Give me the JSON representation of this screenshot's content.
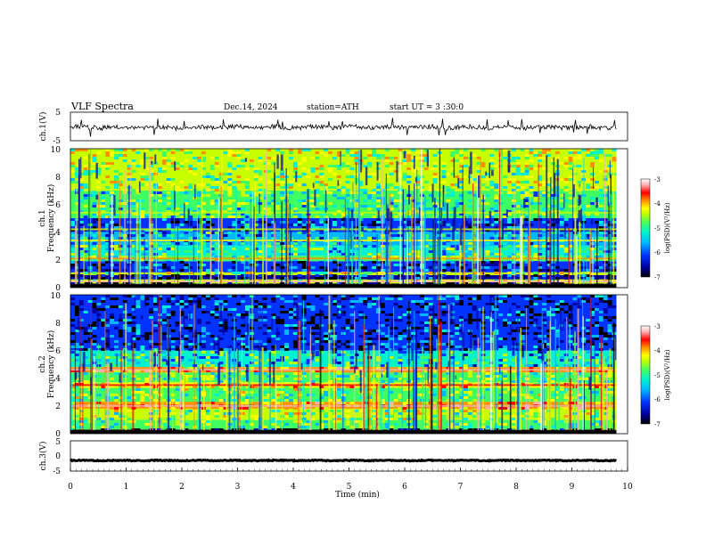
{
  "header": {
    "title": "VLF  Spectra",
    "date": "Dec.14, 2024",
    "station": "station=ATH",
    "start_ut": "start  UT  =   3  :30:0"
  },
  "colors": {
    "cmap": [
      "#000000",
      "#0000a0",
      "#0033ff",
      "#00b8ff",
      "#00f0d0",
      "#40ff60",
      "#c8ff00",
      "#ffff00",
      "#ff9000",
      "#ff0000",
      "#ffb0b0",
      "#ffffff"
    ],
    "trace": "#000000",
    "frame": "#000000"
  },
  "chart_data": [
    {
      "type": "line",
      "name": "ch1-waveform",
      "ylabel": "ch.1(V)",
      "ylim": [
        -5,
        5
      ],
      "yticks": [
        "5",
        "-5"
      ],
      "xlim": [
        0,
        10
      ],
      "x_end": 9.8,
      "mean": -0.3,
      "noise_amplitude": 0.8,
      "spike_amplitude": 2.5
    },
    {
      "type": "heatmap",
      "name": "ch1-spectrogram",
      "ylabel_top": "ch.1",
      "ylabel": "Frequency (kHz)",
      "ylim": [
        0,
        10
      ],
      "yticks": [
        "10",
        "8",
        "6",
        "4",
        "2",
        "0"
      ],
      "xlim": [
        0,
        10
      ],
      "x_end": 9.8,
      "colorbar": {
        "label": "log(PSD)(V²/Hz)",
        "range": [
          -7,
          -3
        ],
        "ticks": [
          "-3",
          "-4",
          "-5",
          "-6",
          "-7"
        ]
      },
      "bands": [
        {
          "f": [
            0.0,
            0.3
          ],
          "level": -7.0
        },
        {
          "f": [
            0.3,
            0.6
          ],
          "level": -5.0
        },
        {
          "f": [
            0.6,
            0.9
          ],
          "level": -6.5
        },
        {
          "f": [
            0.9,
            1.1
          ],
          "level": -4.8
        },
        {
          "f": [
            1.1,
            1.9
          ],
          "level": -6.3
        },
        {
          "f": [
            1.9,
            2.3
          ],
          "level": -5.1
        },
        {
          "f": [
            2.3,
            3.0
          ],
          "level": -5.4
        },
        {
          "f": [
            3.0,
            4.0
          ],
          "level": -5.7
        },
        {
          "f": [
            4.0,
            5.0
          ],
          "level": -6.1
        },
        {
          "f": [
            5.0,
            7.0
          ],
          "level": -5.3
        },
        {
          "f": [
            7.0,
            8.5
          ],
          "level": -5.0
        },
        {
          "f": [
            8.5,
            10.0
          ],
          "level": -4.8
        }
      ],
      "lines": [
        {
          "f": 0.45,
          "level": -3.6
        },
        {
          "f": 2.1,
          "level": -4.3
        },
        {
          "f": 3.4,
          "level": -4.6
        },
        {
          "f": 4.2,
          "level": -4.7
        },
        {
          "f": 5.4,
          "level": -4.8
        }
      ]
    },
    {
      "type": "heatmap",
      "name": "ch2-spectrogram",
      "ylabel_top": "ch.2",
      "ylabel": "Frequency (kHz)",
      "ylim": [
        0,
        10
      ],
      "yticks": [
        "10",
        "8",
        "6",
        "4",
        "2",
        "0"
      ],
      "xlim": [
        0,
        10
      ],
      "x_end": 9.8,
      "colorbar": {
        "label": "log(PSD)(V²/Hz)",
        "range": [
          -7,
          -3
        ],
        "ticks": [
          "-3",
          "-4",
          "-5",
          "-6",
          "-7"
        ]
      },
      "bands": [
        {
          "f": [
            0.0,
            0.3
          ],
          "level": -7.0
        },
        {
          "f": [
            0.3,
            1.0
          ],
          "level": -5.2
        },
        {
          "f": [
            1.0,
            1.8
          ],
          "level": -5.0
        },
        {
          "f": [
            1.8,
            2.3
          ],
          "level": -4.2
        },
        {
          "f": [
            2.3,
            3.3
          ],
          "level": -5.1
        },
        {
          "f": [
            3.3,
            3.7
          ],
          "level": -4.6
        },
        {
          "f": [
            3.7,
            4.4
          ],
          "level": -5.2
        },
        {
          "f": [
            4.4,
            4.8
          ],
          "level": -4.3
        },
        {
          "f": [
            4.8,
            6.0
          ],
          "level": -5.6
        },
        {
          "f": [
            6.0,
            10.0
          ],
          "level": -6.3
        }
      ],
      "lines": [
        {
          "f": 2.0,
          "level": -3.5
        },
        {
          "f": 3.5,
          "level": -3.7
        },
        {
          "f": 4.6,
          "level": -3.6
        }
      ]
    },
    {
      "type": "line",
      "name": "ch3-waveform",
      "ylabel": "ch.3(V)",
      "ylim": [
        -5,
        5
      ],
      "yticks": [
        "5",
        "0",
        "-5"
      ],
      "xlim": [
        0,
        10
      ],
      "x_end": 9.8,
      "mean": -1.5,
      "noise_amplitude": 0.15,
      "spike_amplitude": 0
    }
  ],
  "xaxis": {
    "label": "Time  (min)",
    "ticks": [
      "0",
      "1",
      "2",
      "3",
      "4",
      "5",
      "6",
      "7",
      "8",
      "9",
      "10"
    ]
  }
}
